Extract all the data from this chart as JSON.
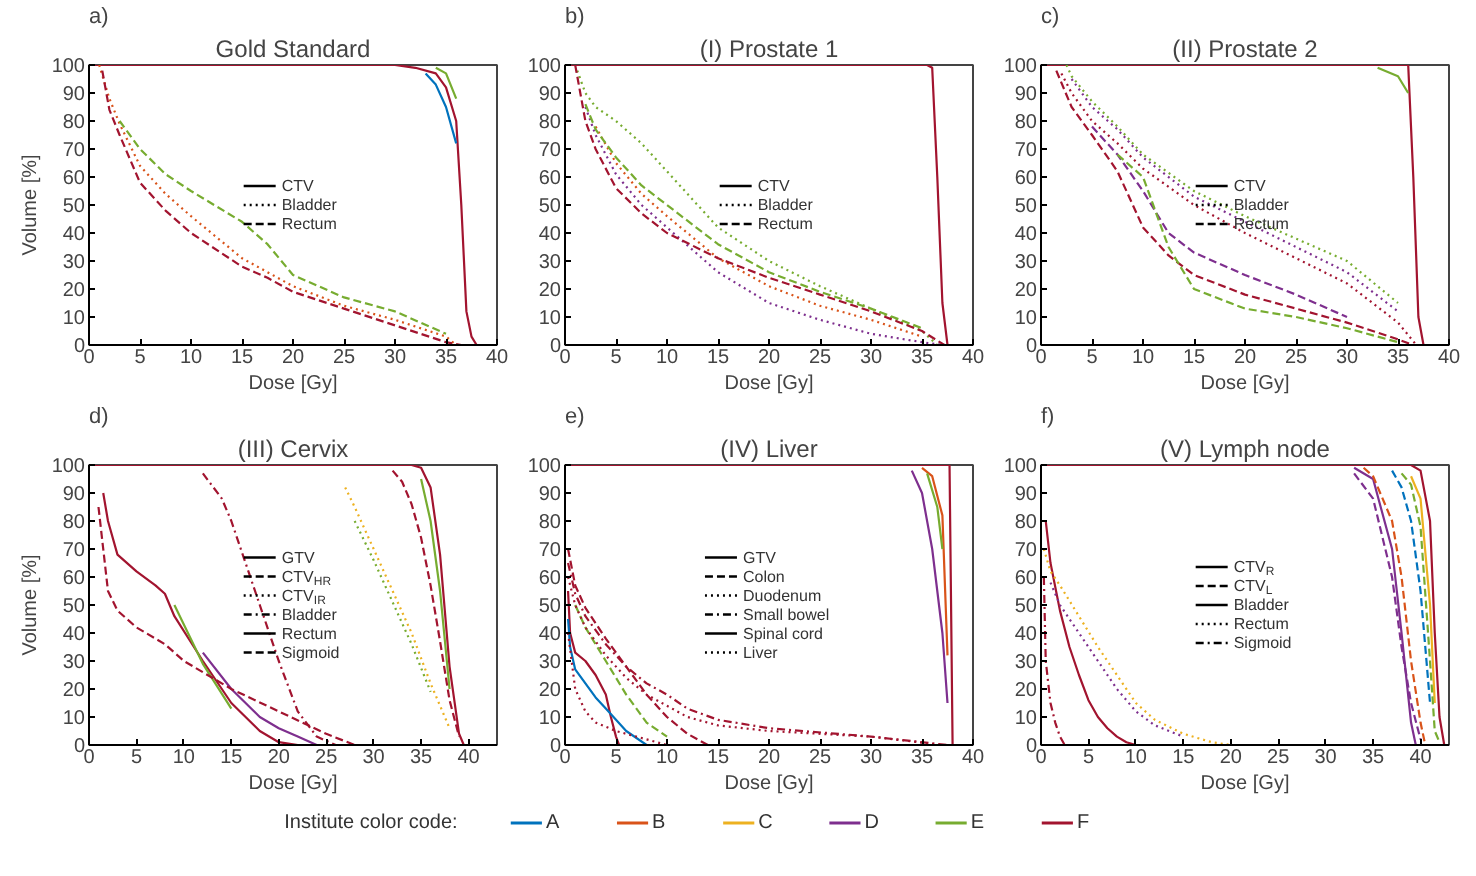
{
  "chart_data": [
    {
      "type": "line",
      "title": "Gold Standard",
      "annotations": [
        "a)"
      ],
      "xlabel": "Dose [Gy]",
      "ylabel": "Volume [%]",
      "xlim": [
        0,
        40
      ],
      "ylim": [
        0,
        100
      ],
      "xticks": [
        0,
        5,
        10,
        15,
        20,
        25,
        30,
        35,
        40
      ],
      "yticks": [
        0,
        10,
        20,
        30,
        40,
        50,
        60,
        70,
        80,
        90,
        100
      ],
      "legend": "center",
      "series": [
        {
          "color": "#a2142f",
          "line_style": "solid",
          "x": [
            0,
            30,
            32,
            34,
            35,
            36,
            36.5,
            37,
            37.5,
            38
          ],
          "values": [
            100,
            100,
            99,
            97,
            92,
            80,
            50,
            12,
            3,
            0
          ]
        },
        {
          "color": "#0072bd",
          "line_style": "solid",
          "x": [
            33,
            34,
            35,
            36
          ],
          "values": [
            97,
            93,
            85,
            72
          ]
        },
        {
          "color": "#77ac30",
          "line_style": "solid",
          "x": [
            34,
            35,
            36
          ],
          "values": [
            99,
            97,
            88
          ]
        },
        {
          "color": "#d95319",
          "line_style": "dotted",
          "x": [
            1,
            2,
            3,
            5,
            7.5,
            10,
            15,
            20,
            25,
            30,
            35,
            36
          ],
          "values": [
            100,
            88,
            79,
            64,
            54,
            46,
            31,
            21,
            14,
            9,
            3,
            0
          ]
        },
        {
          "color": "#a2142f",
          "line_style": "dashed",
          "x": [
            1.3,
            2,
            3,
            5,
            7.5,
            10,
            15,
            17.5,
            20,
            25,
            30,
            35,
            36.5
          ],
          "values": [
            98,
            84,
            75,
            58,
            48,
            40,
            28,
            24,
            19,
            13,
            7,
            1,
            0
          ]
        },
        {
          "color": "#77ac30",
          "line_style": "dashed",
          "x": [
            3,
            5,
            7.5,
            10,
            15,
            17.5,
            20,
            25,
            30,
            35
          ],
          "values": [
            80,
            70,
            61,
            55,
            44,
            36,
            25,
            17,
            12,
            4
          ]
        },
        {
          "name": "CTV",
          "color": "#000000",
          "line_style": "solid"
        },
        {
          "name": "Bladder",
          "color": "#000000",
          "line_style": "dotted"
        },
        {
          "name": "Rectum",
          "color": "#000000",
          "line_style": "dashed"
        }
      ]
    },
    {
      "type": "line",
      "title": "(I) Prostate 1",
      "annotations": [
        "b)"
      ],
      "xlabel": "Dose [Gy]",
      "xlim": [
        0,
        40
      ],
      "ylim": [
        0,
        100
      ],
      "xticks": [
        0,
        5,
        10,
        15,
        20,
        25,
        30,
        35,
        40
      ],
      "yticks": [
        0,
        10,
        20,
        30,
        40,
        50,
        60,
        70,
        80,
        90,
        100
      ],
      "legend": "center",
      "series": [
        {
          "color": "#a2142f",
          "line_style": "solid",
          "x": [
            0,
            35.5,
            36,
            36.5,
            37,
            37.5
          ],
          "values": [
            100,
            100,
            99,
            60,
            15,
            0
          ]
        },
        {
          "color": "#7e2f8e",
          "line_style": "dotted",
          "x": [
            2,
            3,
            5,
            7.5,
            10,
            15,
            20,
            25,
            30,
            35,
            37
          ],
          "values": [
            85,
            75,
            61,
            50,
            42,
            26,
            15,
            9,
            4,
            1,
            0
          ]
        },
        {
          "color": "#d95319",
          "line_style": "dotted",
          "x": [
            3,
            5,
            7.5,
            10,
            15,
            20,
            25,
            30,
            35
          ],
          "values": [
            78,
            65,
            54,
            46,
            31,
            21,
            14,
            9,
            3
          ]
        },
        {
          "color": "#77ac30",
          "line_style": "dotted",
          "x": [
            1.2,
            2,
            3,
            5,
            7.5,
            10,
            15,
            20,
            25,
            30,
            35,
            36.5
          ],
          "values": [
            98,
            90,
            85,
            80,
            72,
            62,
            42,
            30,
            21,
            13,
            5,
            0
          ]
        },
        {
          "color": "#a2142f",
          "line_style": "dashed",
          "x": [
            1,
            2,
            3,
            5,
            7.5,
            10,
            15,
            20,
            25,
            30,
            35,
            37.2
          ],
          "values": [
            100,
            80,
            70,
            56,
            47,
            40,
            31,
            24,
            18,
            12,
            5,
            0
          ]
        },
        {
          "color": "#77ac30",
          "line_style": "dashed",
          "x": [
            2,
            3,
            5,
            7.5,
            10,
            15,
            20,
            25,
            30,
            35
          ],
          "values": [
            86,
            77,
            67,
            57,
            50,
            36,
            26,
            19,
            13,
            6
          ]
        },
        {
          "name": "CTV",
          "color": "#000000",
          "line_style": "solid"
        },
        {
          "name": "Bladder",
          "color": "#000000",
          "line_style": "dotted"
        },
        {
          "name": "Rectum",
          "color": "#000000",
          "line_style": "dashed"
        }
      ]
    },
    {
      "type": "line",
      "title": "(II) Prostate 2",
      "annotations": [
        "c)"
      ],
      "xlabel": "Dose [Gy]",
      "xlim": [
        0,
        40
      ],
      "ylim": [
        0,
        100
      ],
      "xticks": [
        0,
        5,
        10,
        15,
        20,
        25,
        30,
        35,
        40
      ],
      "yticks": [
        0,
        10,
        20,
        30,
        40,
        50,
        60,
        70,
        80,
        90,
        100
      ],
      "legend": "center",
      "series": [
        {
          "color": "#a2142f",
          "line_style": "solid",
          "x": [
            0,
            36,
            36.5,
            37,
            37.5
          ],
          "values": [
            100,
            100,
            60,
            10,
            0
          ]
        },
        {
          "color": "#77ac30",
          "line_style": "solid",
          "x": [
            33,
            35,
            36
          ],
          "values": [
            99,
            96,
            90
          ]
        },
        {
          "color": "#a2142f",
          "line_style": "dotted",
          "x": [
            2,
            3,
            5,
            7.5,
            10,
            15,
            20,
            25,
            30,
            35,
            36.8
          ],
          "values": [
            97,
            90,
            80,
            72,
            63,
            50,
            40,
            31,
            22,
            8,
            0
          ]
        },
        {
          "color": "#7e2f8e",
          "line_style": "dotted",
          "x": [
            3,
            5,
            7.5,
            10,
            15,
            20,
            25,
            30,
            35
          ],
          "values": [
            95,
            85,
            77,
            67,
            53,
            44,
            35,
            26,
            12
          ]
        },
        {
          "color": "#77ac30",
          "line_style": "dotted",
          "x": [
            2.5,
            3,
            5,
            7.5,
            10,
            15,
            20,
            25,
            30,
            35
          ],
          "values": [
            100,
            96,
            87,
            78,
            68,
            55,
            46,
            38,
            30,
            15
          ]
        },
        {
          "color": "#a2142f",
          "line_style": "dashed",
          "x": [
            1.5,
            3,
            5,
            7.5,
            10,
            12.5,
            15,
            20,
            25,
            30,
            35,
            36.5
          ],
          "values": [
            98,
            85,
            75,
            62,
            42,
            32,
            25,
            18,
            13,
            8,
            2,
            0
          ]
        },
        {
          "color": "#7e2f8e",
          "line_style": "dashed",
          "x": [
            5,
            7.5,
            10,
            12.5,
            15,
            20,
            25,
            30
          ],
          "values": [
            78,
            68,
            55,
            40,
            33,
            25,
            18,
            10
          ]
        },
        {
          "color": "#77ac30",
          "line_style": "dashed",
          "x": [
            7.5,
            10,
            12.5,
            15,
            20,
            25,
            30,
            35
          ],
          "values": [
            68,
            60,
            35,
            20,
            13,
            10,
            6,
            1
          ]
        },
        {
          "name": "CTV",
          "color": "#000000",
          "line_style": "solid"
        },
        {
          "name": "Bladder",
          "color": "#000000",
          "line_style": "dotted"
        },
        {
          "name": "Rectum",
          "color": "#000000",
          "line_style": "dashed"
        }
      ]
    },
    {
      "type": "line",
      "title": "(III) Cervix",
      "annotations": [
        "d)"
      ],
      "xlabel": "Dose [Gy]",
      "ylabel": "Volume [%]",
      "xlim": [
        0,
        43
      ],
      "ylim": [
        0,
        100
      ],
      "xticks": [
        0,
        5,
        10,
        15,
        20,
        25,
        30,
        35,
        40
      ],
      "yticks": [
        0,
        10,
        20,
        30,
        40,
        50,
        60,
        70,
        80,
        90,
        100
      ],
      "legend": "center",
      "series": [
        {
          "color": "#a2142f",
          "line_style": "solid",
          "x": [
            0,
            34,
            35,
            36,
            37,
            38,
            39,
            39.5
          ],
          "values": [
            100,
            100,
            99,
            92,
            68,
            28,
            4,
            0
          ]
        },
        {
          "color": "#77ac30",
          "line_style": "solid",
          "x": [
            35,
            36,
            37,
            38
          ],
          "values": [
            95,
            80,
            55,
            20
          ]
        },
        {
          "color": "#a2142f",
          "line_style": "dashed",
          "x": [
            32,
            33,
            34,
            35,
            36,
            37,
            38,
            39
          ],
          "values": [
            98,
            94,
            86,
            74,
            57,
            37,
            16,
            3
          ]
        },
        {
          "color": "#edb120",
          "line_style": "dotted",
          "x": [
            27,
            28,
            30,
            32,
            34,
            36,
            38
          ],
          "values": [
            92,
            85,
            70,
            55,
            40,
            22,
            6
          ]
        },
        {
          "color": "#77ac30",
          "line_style": "dotted",
          "x": [
            28,
            30,
            32,
            34,
            36
          ],
          "values": [
            80,
            66,
            51,
            36,
            19
          ]
        },
        {
          "color": "#a2142f",
          "line_style": "dashdot",
          "x": [
            12,
            14,
            15,
            16,
            18,
            20,
            22,
            24,
            26
          ],
          "values": [
            97,
            88,
            80,
            70,
            50,
            30,
            12,
            3,
            0
          ]
        },
        {
          "color": "#a2142f",
          "line_style": "solid",
          "x": [
            1.5,
            2,
            3,
            5,
            7,
            8,
            9,
            12,
            15,
            18,
            20,
            22
          ],
          "values": [
            90,
            80,
            68,
            62,
            57,
            54,
            46,
            30,
            15,
            5,
            1,
            0
          ]
        },
        {
          "color": "#7e2f8e",
          "line_style": "solid",
          "x": [
            12,
            15,
            18,
            20,
            22,
            24
          ],
          "values": [
            33,
            20,
            10,
            6,
            3,
            0
          ]
        },
        {
          "color": "#77ac30",
          "line_style": "solid",
          "x": [
            9,
            12,
            15
          ],
          "values": [
            50,
            29,
            13
          ]
        },
        {
          "color": "#a2142f",
          "line_style": "dashed",
          "x": [
            1,
            1.5,
            2,
            3,
            5,
            8,
            10,
            15,
            20,
            25,
            28
          ],
          "values": [
            85,
            70,
            55,
            48,
            42,
            36,
            30,
            20,
            12,
            4,
            0
          ]
        },
        {
          "name": "GTV",
          "color": "#000000",
          "line_style": "solid"
        },
        {
          "name": "CTV$_{HR}$",
          "color": "#000000",
          "line_style": "dashed"
        },
        {
          "name": "CTV$_{IR}$",
          "color": "#000000",
          "line_style": "dotted"
        },
        {
          "name": "Bladder",
          "color": "#000000",
          "line_style": "dashdot"
        },
        {
          "name": "Rectum",
          "color": "#000000",
          "line_style": "solid"
        },
        {
          "name": "Sigmoid",
          "color": "#000000",
          "line_style": "dashed"
        }
      ]
    },
    {
      "type": "line",
      "title": "(IV) Liver",
      "annotations": [
        "e)"
      ],
      "xlabel": "Dose [Gy]",
      "xlim": [
        0,
        40
      ],
      "ylim": [
        0,
        100
      ],
      "xticks": [
        0,
        5,
        10,
        15,
        20,
        25,
        30,
        35,
        40
      ],
      "yticks": [
        0,
        10,
        20,
        30,
        40,
        50,
        60,
        70,
        80,
        90,
        100
      ],
      "legend": "center",
      "series": [
        {
          "color": "#a2142f",
          "line_style": "solid",
          "x": [
            0,
            37.7,
            38
          ],
          "values": [
            100,
            100,
            0
          ]
        },
        {
          "color": "#d95319",
          "line_style": "solid",
          "x": [
            35,
            36,
            37,
            37.5
          ],
          "values": [
            99,
            96,
            82,
            32
          ]
        },
        {
          "color": "#7e2f8e",
          "line_style": "solid",
          "x": [
            34,
            35,
            36,
            37,
            37.5
          ],
          "values": [
            98,
            90,
            70,
            40,
            15
          ]
        },
        {
          "color": "#77ac30",
          "line_style": "solid",
          "x": [
            35.5,
            36.5,
            37
          ],
          "values": [
            97,
            85,
            70
          ]
        },
        {
          "color": "#a2142f",
          "line_style": "dashed",
          "x": [
            0.3,
            1,
            2,
            4,
            6,
            8,
            10,
            12,
            14
          ],
          "values": [
            70,
            57,
            49,
            38,
            28,
            18,
            10,
            4,
            0
          ]
        },
        {
          "color": "#77ac30",
          "line_style": "dashed",
          "x": [
            1,
            2,
            4,
            6,
            8,
            10
          ],
          "values": [
            50,
            42,
            30,
            18,
            8,
            3
          ]
        },
        {
          "color": "#a2142f",
          "line_style": "dotted",
          "x": [
            0.3,
            1,
            2,
            4,
            6,
            8,
            10,
            12,
            15,
            20,
            30,
            37
          ],
          "values": [
            60,
            50,
            42,
            32,
            24,
            18,
            14,
            10,
            7,
            5,
            3,
            0
          ]
        },
        {
          "color": "#a2142f",
          "line_style": "dashdot",
          "x": [
            0.3,
            1,
            2,
            4,
            6,
            8,
            10,
            12,
            15,
            20,
            30,
            37.5
          ],
          "values": [
            65,
            54,
            46,
            36,
            28,
            22,
            18,
            13,
            9,
            6,
            3,
            0
          ]
        },
        {
          "color": "#a2142f",
          "line_style": "solid",
          "x": [
            0.3,
            0.5,
            1,
            2,
            3,
            4,
            4.5,
            5,
            5.3
          ],
          "values": [
            55,
            40,
            33,
            30,
            25,
            18,
            10,
            3,
            0
          ]
        },
        {
          "color": "#0072bd",
          "line_style": "solid",
          "x": [
            0.3,
            0.5,
            1,
            2,
            3,
            4,
            5,
            6,
            8
          ],
          "values": [
            45,
            35,
            27,
            22,
            17,
            13,
            9,
            5,
            0
          ]
        },
        {
          "color": "#a2142f",
          "line_style": "dotted",
          "x": [
            0.3,
            1,
            2,
            3,
            5,
            7,
            9,
            10
          ],
          "values": [
            40,
            20,
            12,
            8,
            5,
            3,
            1,
            0
          ]
        },
        {
          "name": "GTV",
          "color": "#000000",
          "line_style": "solid"
        },
        {
          "name": "Colon",
          "color": "#000000",
          "line_style": "dashed"
        },
        {
          "name": "Duodenum",
          "color": "#000000",
          "line_style": "dotted"
        },
        {
          "name": "Small bowel",
          "color": "#000000",
          "line_style": "dashdot"
        },
        {
          "name": "Spinal cord",
          "color": "#000000",
          "line_style": "solid"
        },
        {
          "name": "Liver",
          "color": "#000000",
          "line_style": "dotted"
        }
      ]
    },
    {
      "type": "line",
      "title": "(V) Lymph node",
      "annotations": [
        "f)"
      ],
      "xlabel": "Dose [Gy]",
      "xlim": [
        0,
        43
      ],
      "ylim": [
        0,
        100
      ],
      "xticks": [
        0,
        5,
        10,
        15,
        20,
        25,
        30,
        35,
        40
      ],
      "yticks": [
        0,
        10,
        20,
        30,
        40,
        50,
        60,
        70,
        80,
        90,
        100
      ],
      "legend": "center",
      "series": [
        {
          "color": "#a2142f",
          "line_style": "solid",
          "x": [
            0,
            39,
            40,
            41,
            41.5,
            42,
            42.5
          ],
          "values": [
            100,
            100,
            98,
            80,
            40,
            10,
            0
          ]
        },
        {
          "color": "#edb120",
          "line_style": "solid",
          "x": [
            39,
            40,
            41,
            41.5
          ],
          "values": [
            96,
            88,
            50,
            15
          ]
        },
        {
          "color": "#7e2f8e",
          "line_style": "solid",
          "x": [
            33,
            35,
            37,
            38,
            39,
            39.5
          ],
          "values": [
            99,
            95,
            70,
            40,
            8,
            0
          ]
        },
        {
          "color": "#77ac30",
          "line_style": "dashed",
          "x": [
            38,
            39,
            40,
            41,
            41.5,
            42
          ],
          "values": [
            97,
            93,
            78,
            30,
            5,
            1
          ]
        },
        {
          "color": "#0072bd",
          "line_style": "dashed",
          "x": [
            37,
            38,
            39,
            40,
            41
          ],
          "values": [
            98,
            92,
            80,
            55,
            15
          ]
        },
        {
          "color": "#d95319",
          "line_style": "dashed",
          "x": [
            34,
            35,
            37,
            38,
            39,
            40,
            40.5
          ],
          "values": [
            99,
            96,
            80,
            60,
            30,
            8,
            0
          ]
        },
        {
          "color": "#7e2f8e",
          "line_style": "dashed",
          "x": [
            33,
            35,
            37,
            38,
            39,
            40
          ],
          "values": [
            97,
            88,
            60,
            35,
            15,
            2
          ]
        },
        {
          "color": "#a2142f",
          "line_style": "solid",
          "x": [
            0.5,
            1,
            2,
            3,
            4,
            5,
            6,
            7,
            8,
            9,
            10
          ],
          "values": [
            80,
            65,
            48,
            35,
            25,
            16,
            10,
            6,
            3,
            1,
            0
          ]
        },
        {
          "color": "#edb120",
          "line_style": "dotted",
          "x": [
            0.3,
            1,
            2,
            4,
            6,
            8,
            10,
            12,
            15,
            18,
            20
          ],
          "values": [
            70,
            62,
            57,
            46,
            35,
            25,
            15,
            9,
            4,
            1,
            0
          ]
        },
        {
          "color": "#7e2f8e",
          "line_style": "dotted",
          "x": [
            1,
            2,
            4,
            6,
            8,
            10,
            12,
            15
          ],
          "values": [
            58,
            50,
            40,
            30,
            20,
            12,
            7,
            3
          ]
        },
        {
          "color": "#a2142f",
          "line_style": "dashdot",
          "x": [
            0.3,
            0.5,
            1,
            1.5,
            2,
            2.5
          ],
          "values": [
            60,
            30,
            15,
            8,
            3,
            0
          ]
        },
        {
          "name": "CTV$_{R}$",
          "color": "#000000",
          "line_style": "solid"
        },
        {
          "name": "CTV$_{L}$",
          "color": "#000000",
          "line_style": "dashed"
        },
        {
          "name": "Bladder",
          "color": "#000000",
          "line_style": "solid"
        },
        {
          "name": "Rectum",
          "color": "#000000",
          "line_style": "dotted"
        },
        {
          "name": "Sigmoid",
          "color": "#000000",
          "line_style": "dashdot"
        }
      ]
    },
    {
      "type": "other",
      "title": "Institute color code:",
      "series": [
        {
          "name": "A",
          "color": "#0072bd"
        },
        {
          "name": "B",
          "color": "#d95319"
        },
        {
          "name": "C",
          "color": "#edb120"
        },
        {
          "name": "D",
          "color": "#7e2f8e"
        },
        {
          "name": "E",
          "color": "#77ac30"
        },
        {
          "name": "F",
          "color": "#a2142f"
        }
      ]
    }
  ]
}
